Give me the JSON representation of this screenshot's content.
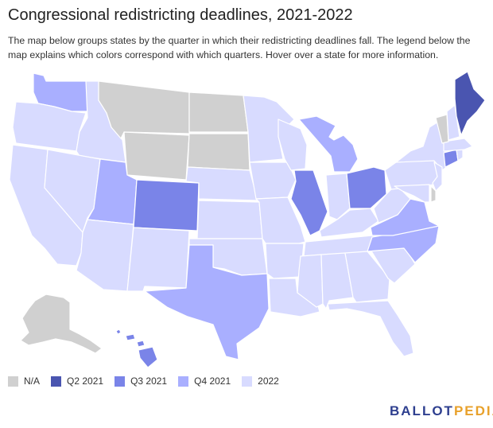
{
  "title": "Congressional redistricting deadlines, 2021-2022",
  "description": "The map below groups states by the quarter in which their redistricting deadlines fall. The legend below the map explains which colors correspond with which quarters. Hover over a state for more information.",
  "colors": {
    "na": "#d0d0d0",
    "q2_2021": "#4a55b0",
    "q3_2021": "#7a84e8",
    "q4_2021": "#a9afff",
    "y2022": "#d8dbff"
  },
  "legend": [
    {
      "label": "N/A",
      "color": "#d0d0d0"
    },
    {
      "label": "Q2 2021",
      "color": "#4a55b0"
    },
    {
      "label": "Q3 2021",
      "color": "#7a84e8"
    },
    {
      "label": "Q4 2021",
      "color": "#a9afff"
    },
    {
      "label": "2022",
      "color": "#d8dbff"
    }
  ],
  "states": {
    "WA": "Q4 2021",
    "OR": "2022",
    "CA": "2022",
    "ID": "2022",
    "NV": "2022",
    "MT": "N/A",
    "WY": "N/A",
    "UT": "Q4 2021",
    "AZ": "2022",
    "CO": "Q3 2021",
    "NM": "2022",
    "ND": "N/A",
    "SD": "N/A",
    "NE": "2022",
    "KS": "2022",
    "OK": "2022",
    "TX": "Q4 2021",
    "MN": "2022",
    "IA": "2022",
    "MO": "2022",
    "AR": "2022",
    "LA": "2022",
    "WI": "2022",
    "IL": "Q3 2021",
    "MI": "Q4 2021",
    "IN": "2022",
    "OH": "Q3 2021",
    "KY": "2022",
    "TN": "2022",
    "MS": "2022",
    "AL": "2022",
    "GA": "2022",
    "FL": "2022",
    "SC": "2022",
    "NC": "Q4 2021",
    "VA": "Q4 2021",
    "WV": "2022",
    "PA": "2022",
    "NY": "2022",
    "VT": "N/A",
    "NH": "2022",
    "ME": "Q2 2021",
    "MA": "2022",
    "CT": "Q3 2021",
    "RI": "2022",
    "NJ": "2022",
    "DE": "N/A",
    "MD": "2022",
    "AK": "N/A",
    "HI": "Q3 2021"
  },
  "brand": {
    "part1": "BALLOT",
    "part2": "PEDIA"
  }
}
